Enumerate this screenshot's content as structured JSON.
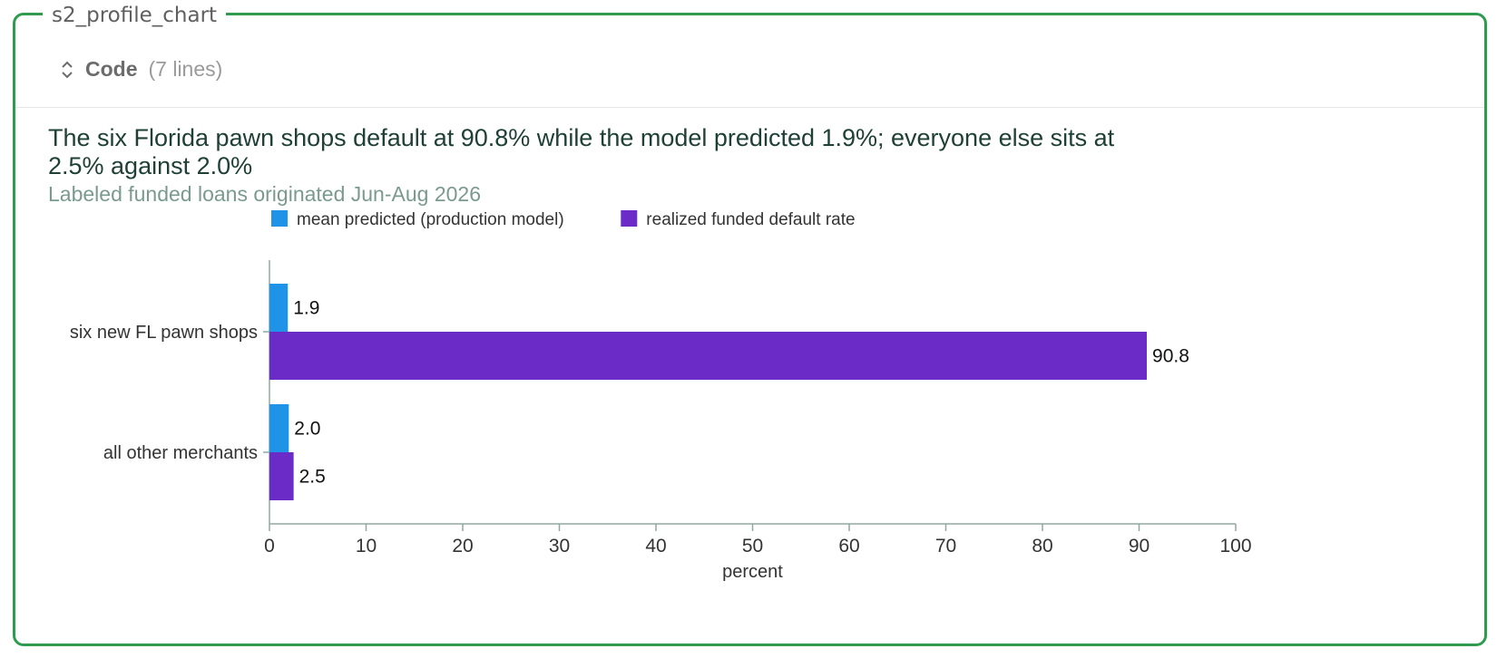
{
  "cell": {
    "label": "s2_profile_chart",
    "code_toggle": {
      "title": "Code",
      "lines": "(7 lines)",
      "icon": "chevron-up-down-icon"
    }
  },
  "colors": {
    "frame": "#2e9b4e",
    "predicted": "#1f93e8",
    "realized": "#6a2bc7",
    "axis": "#8fa8a0"
  },
  "chart_data": {
    "type": "bar",
    "orientation": "horizontal",
    "title": "The six Florida pawn shops default at 90.8% while the model predicted 1.9%; everyone else sits at 2.5% against 2.0%",
    "subtitle": "Labeled funded loans originated Jun-Aug 2026",
    "xlabel": "percent",
    "ylabel": "",
    "xlim": [
      0,
      100
    ],
    "xticks": [
      0,
      10,
      20,
      30,
      40,
      50,
      60,
      70,
      80,
      90,
      100
    ],
    "categories": [
      "six new FL pawn shops",
      "all other merchants"
    ],
    "series": [
      {
        "name": "mean predicted (production model)",
        "values": [
          1.9,
          2.0
        ],
        "labels": [
          "1.9",
          "2.0"
        ],
        "color": "#1f93e8"
      },
      {
        "name": "realized funded default rate",
        "values": [
          90.8,
          2.5
        ],
        "labels": [
          "90.8",
          "2.5"
        ],
        "color": "#6a2bc7"
      }
    ],
    "legend": "top-left",
    "grid": false
  }
}
